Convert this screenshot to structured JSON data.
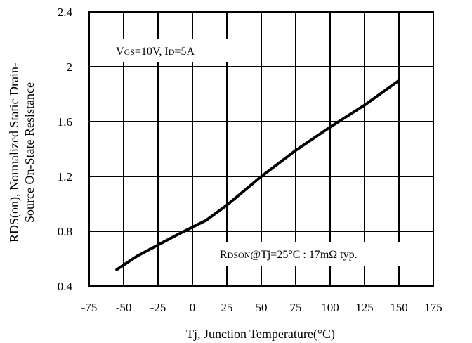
{
  "chart_data": {
    "type": "line",
    "title": "",
    "xlabel": "Tj, Junction Temperature(°C)",
    "ylabel_line1": "RDS(on), Normalized Static Drain-",
    "ylabel_line2": "Source On-State Resistance",
    "xlim": [
      -75,
      175
    ],
    "ylim": [
      0.4,
      2.4
    ],
    "x_ticks": [
      -75,
      -50,
      -25,
      0,
      25,
      50,
      75,
      100,
      125,
      150,
      175
    ],
    "y_ticks": [
      0.4,
      0.8,
      1.2,
      1.6,
      2,
      2.4
    ],
    "x_tick_labels": [
      "-75",
      "-50",
      "-25",
      "0",
      "25",
      "50",
      "75",
      "100",
      "125",
      "150",
      "175"
    ],
    "y_tick_labels": [
      "0.4",
      "0.8",
      "1.2",
      "1.6",
      "2",
      "2.4"
    ],
    "grid": true,
    "series": [
      {
        "x": [
          -55,
          -40,
          -25,
          -10,
          0,
          10,
          25,
          50,
          75,
          100,
          125,
          150
        ],
        "y": [
          0.52,
          0.62,
          0.7,
          0.78,
          0.83,
          0.88,
          0.99,
          1.2,
          1.39,
          1.56,
          1.72,
          1.9
        ]
      }
    ],
    "annotations": {
      "conditions": {
        "v": "V",
        "v_sub": "GS",
        "v_rest": "=10V, I",
        "i_sub": "D",
        "i_rest": "=5A"
      },
      "rdson": {
        "r": "R",
        "r_sub": "DSON",
        "rest": "@Tj=25°C : 17mΩ typ."
      }
    }
  }
}
